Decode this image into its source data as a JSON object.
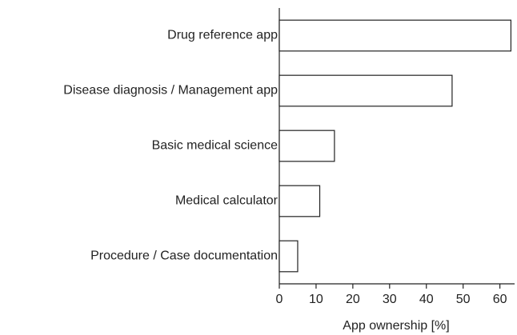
{
  "chart_data": {
    "type": "barh",
    "xlabel": "App ownership [%]",
    "categories": [
      "Drug reference app",
      "Disease diagnosis / Management app",
      "Basic medical science",
      "Medical calculator",
      "Procedure / Case documentation"
    ],
    "values": [
      63,
      47,
      15,
      11,
      5
    ],
    "color": "#ffffff",
    "xlim": [
      0,
      64
    ],
    "xticks": [
      0,
      10,
      20,
      30,
      40,
      50,
      60
    ]
  }
}
